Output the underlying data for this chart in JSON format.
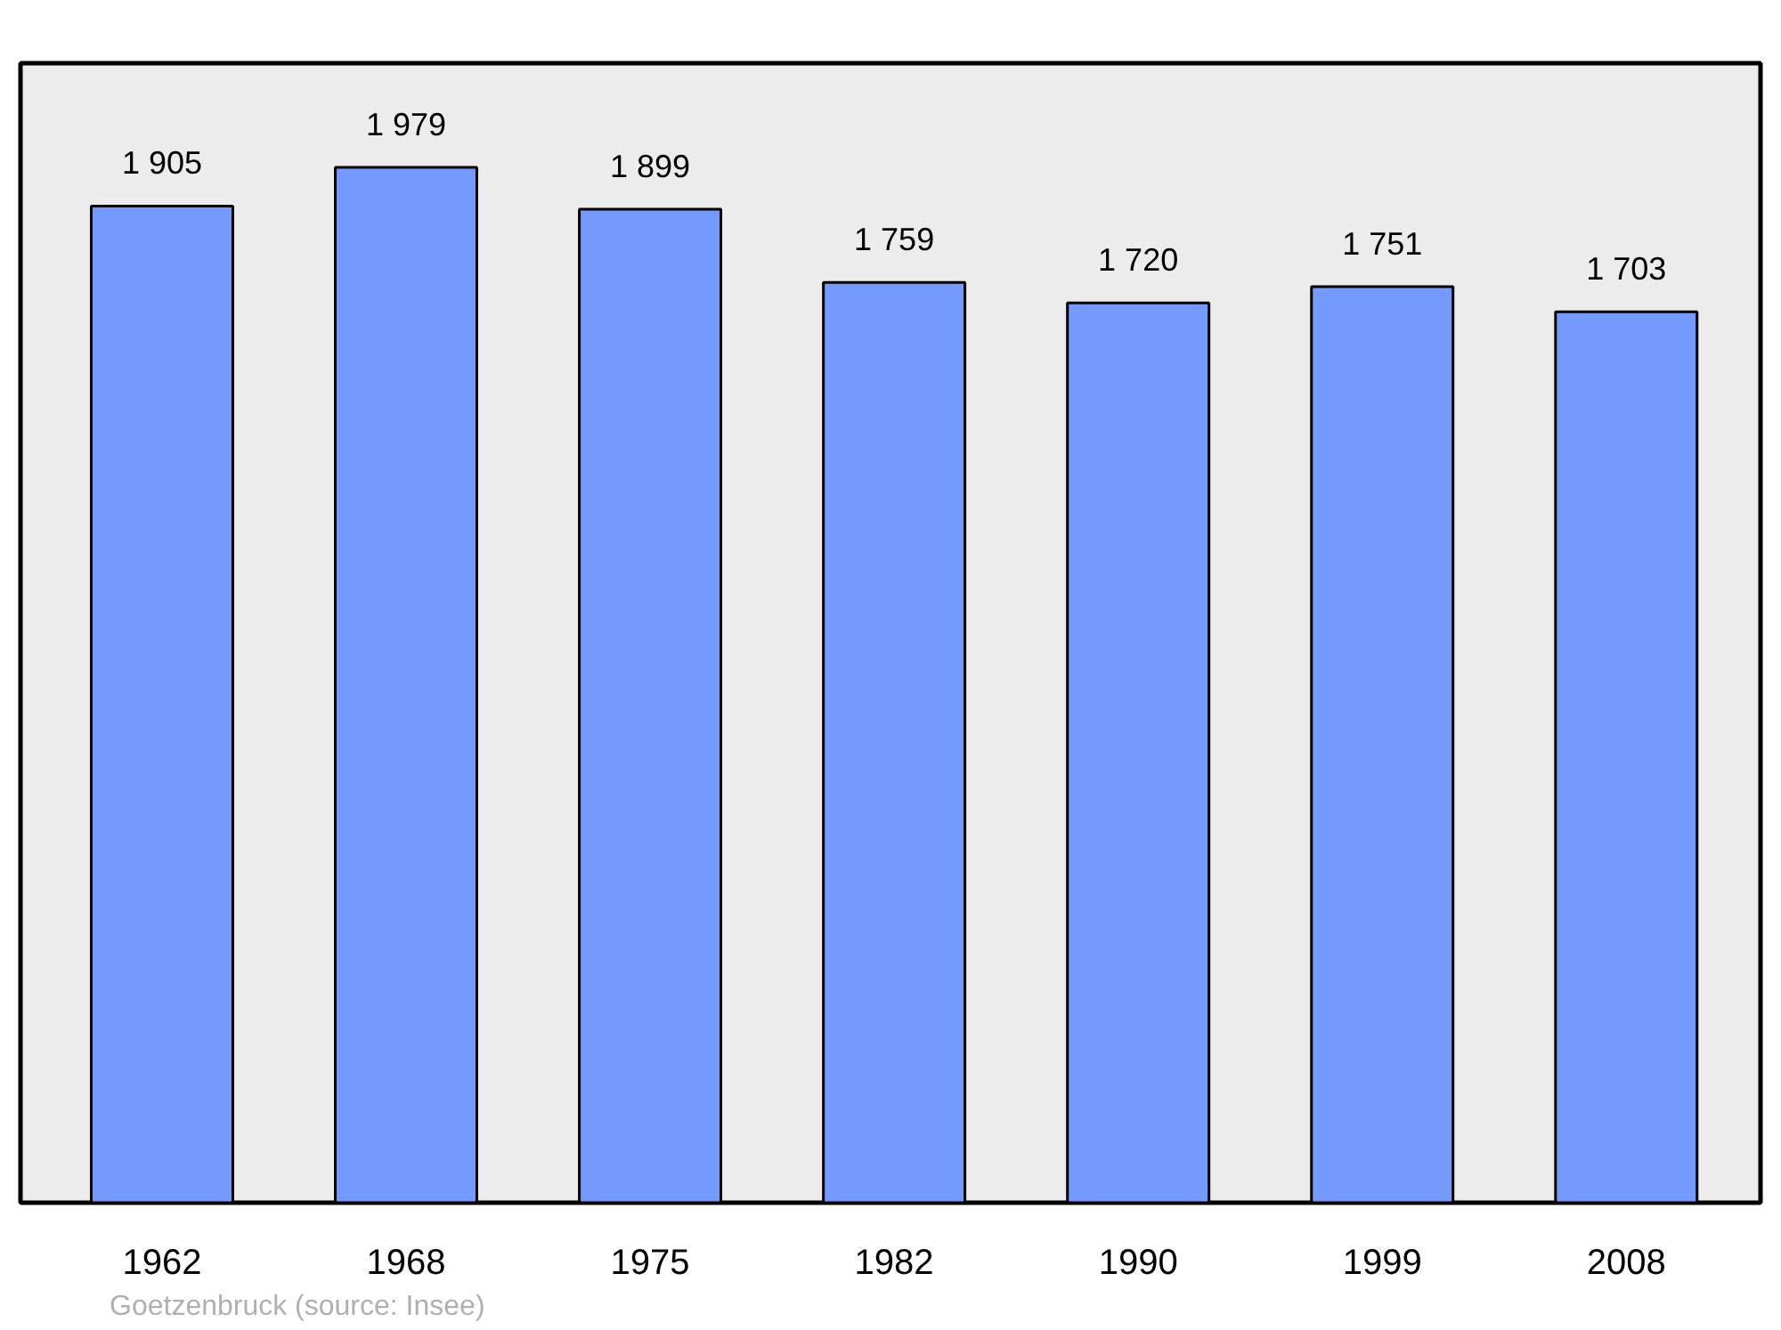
{
  "chart_data": {
    "type": "bar",
    "categories": [
      "1962",
      "1968",
      "1975",
      "1982",
      "1990",
      "1999",
      "2008"
    ],
    "values": [
      1905,
      1979,
      1899,
      1759,
      1720,
      1751,
      1703
    ],
    "value_labels": [
      "1 905",
      "1 979",
      "1 899",
      "1 759",
      "1 720",
      "1 751",
      "1 703"
    ],
    "color": "#7499ff",
    "ylim": [
      0,
      2178
    ],
    "grid": false,
    "tick_labels": "x",
    "annotations": [
      "Goetzenbruck    (source: Insee)"
    ]
  }
}
